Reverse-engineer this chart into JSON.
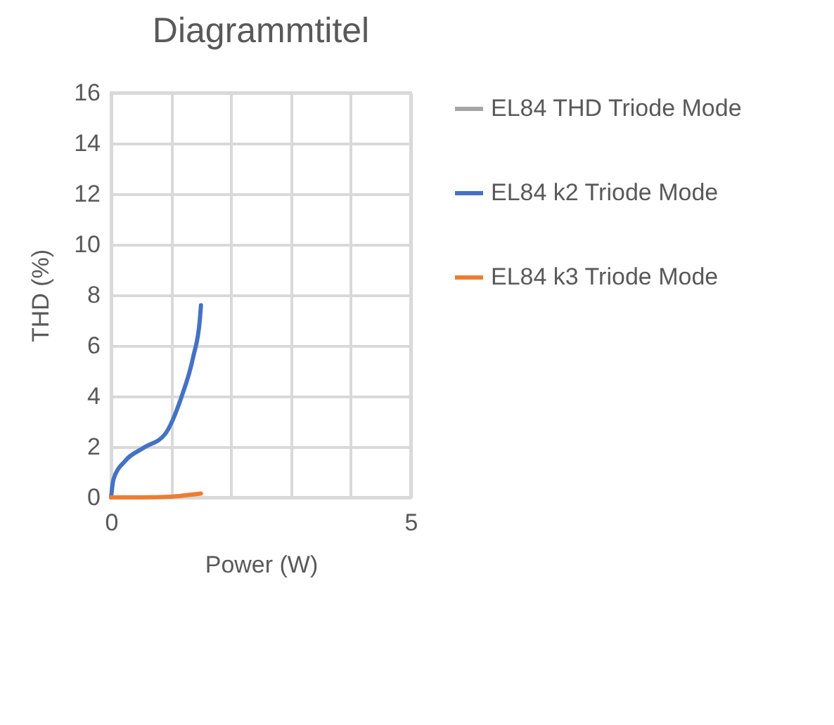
{
  "chart_data": {
    "type": "line",
    "title": "Diagrammtitel",
    "xlabel": "Power (W)",
    "ylabel": "THD  (%)",
    "xlim": [
      0,
      5
    ],
    "xticks": [
      0,
      {
        "value": 1,
        "label": null
      },
      {
        "value": 2,
        "label": null
      },
      {
        "value": 3,
        "label": null
      },
      {
        "value": 4,
        "label": null
      },
      5
    ],
    "ylim": [
      0,
      16
    ],
    "yticks": [
      0,
      2,
      4,
      6,
      8,
      10,
      12,
      14,
      16
    ],
    "grid": true,
    "legend": "right",
    "marker": "none",
    "line_style": "solid",
    "series": [
      {
        "name": "EL84 THD Triode Mode",
        "color": "#a5a5a5"
      },
      {
        "name": "EL84 k2 Triode Mode",
        "color": "#4472c4",
        "x": [
          0,
          0.04,
          0.23,
          0.55,
          0.9,
          1.17,
          1.37,
          1.48,
          1.5
        ],
        "values": [
          0,
          0.72,
          1.43,
          1.97,
          2.5,
          3.94,
          5.55,
          7.0,
          7.6
        ]
      },
      {
        "name": "EL84 k3 Triode Mode",
        "color": "#ed7d31",
        "x": [
          0,
          0.5,
          1.0,
          1.5
        ],
        "values": [
          0,
          0,
          0.03,
          0.15
        ]
      }
    ]
  }
}
